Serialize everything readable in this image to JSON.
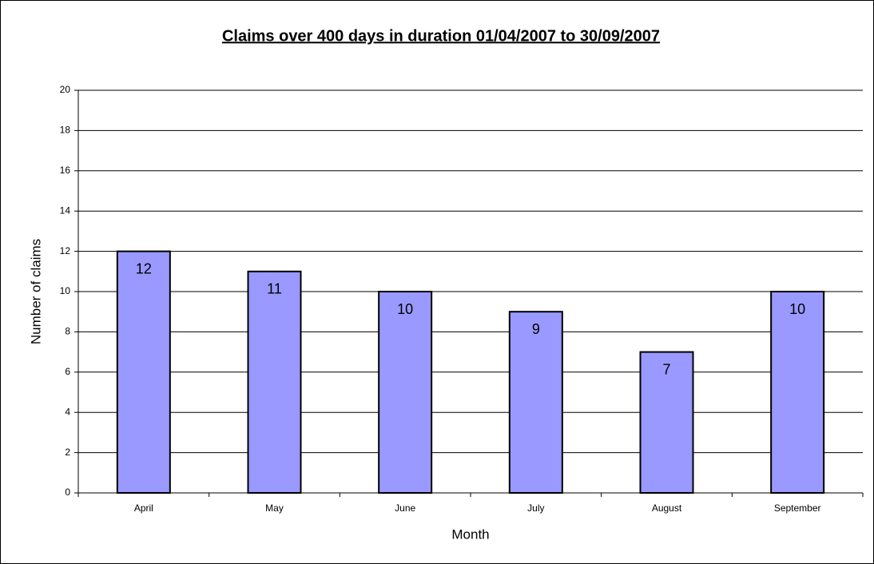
{
  "chart_data": {
    "type": "bar",
    "title": "Claims over 400 days in duration 01/04/2007 to 30/09/2007",
    "x_label": "Month",
    "y_label": "Number of claims",
    "categories": [
      "April",
      "May",
      "June",
      "July",
      "August",
      "September"
    ],
    "values": [
      12,
      11,
      10,
      9,
      7,
      10
    ],
    "color": "#9999ff",
    "ylim": [
      0,
      20
    ],
    "yticks": [
      0,
      2,
      4,
      6,
      8,
      10,
      12,
      14,
      16,
      18,
      20
    ],
    "grid": true
  }
}
